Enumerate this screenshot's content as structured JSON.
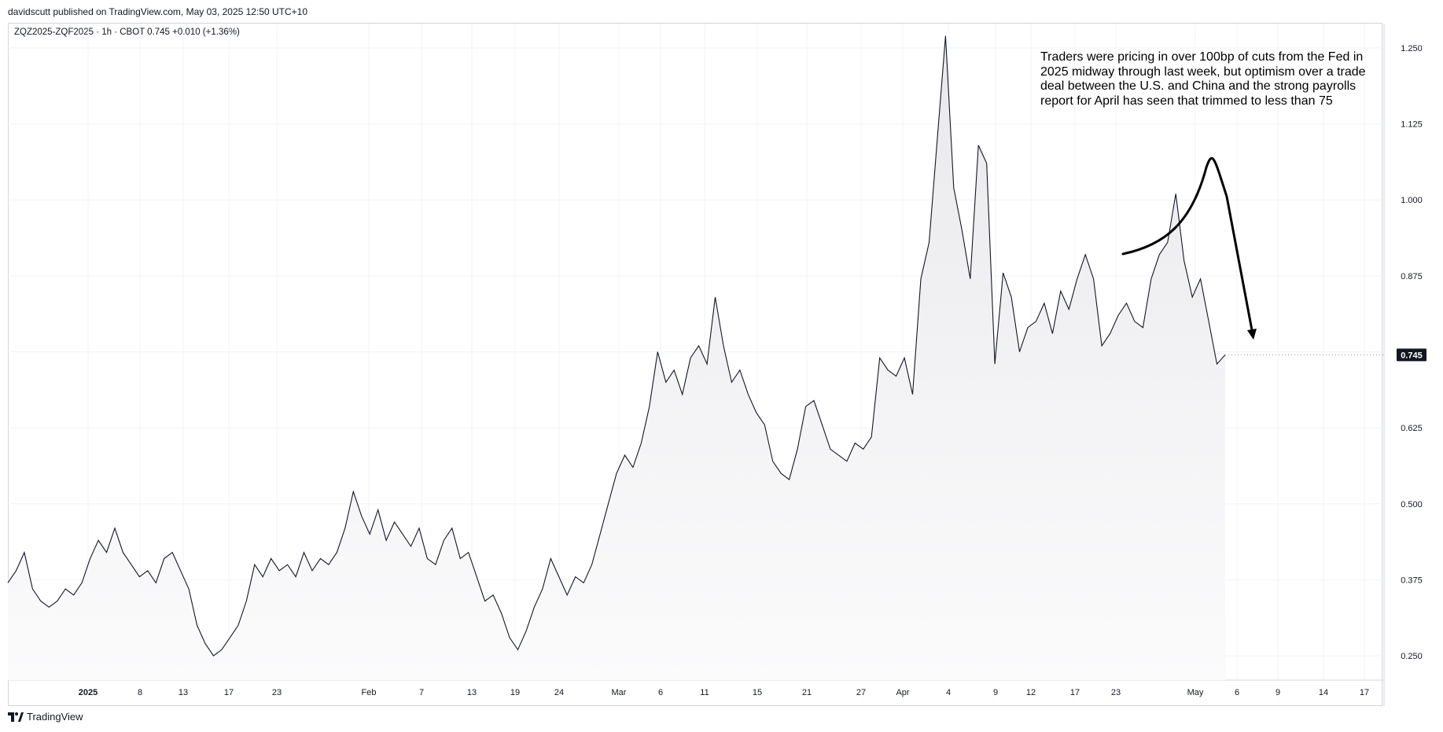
{
  "header": {
    "publisher_line": "davidscutt published on TradingView.com, May 03, 2025 12:50 UTC+10",
    "symbol_line": "ZQZ2025-ZQF2025 · 1h · CBOT  0.745  +0.010 (+1.36%)"
  },
  "annotation": {
    "text": "Traders were pricing in over 100bp of cuts from the Fed in 2025 midway through last week, but optimism over a trade deal between the U.S. and China and the strong payrolls report for April has seen that trimmed to less than 75"
  },
  "footer": {
    "brand": "TradingView"
  },
  "chart_data": {
    "type": "area",
    "series": [
      {
        "values": [
          0.37,
          0.39,
          0.42,
          0.36,
          0.34,
          0.33,
          0.34,
          0.36,
          0.35,
          0.37,
          0.41,
          0.44,
          0.42,
          0.46,
          0.42,
          0.4,
          0.38,
          0.39,
          0.37,
          0.41,
          0.42,
          0.39,
          0.36,
          0.3,
          0.27,
          0.25,
          0.26,
          0.28,
          0.3,
          0.34,
          0.4,
          0.38,
          0.41,
          0.39,
          0.4,
          0.38,
          0.42,
          0.39,
          0.41,
          0.4,
          0.42,
          0.46,
          0.52,
          0.48,
          0.45,
          0.49,
          0.44,
          0.47,
          0.45,
          0.43,
          0.46,
          0.41,
          0.4,
          0.44,
          0.46,
          0.41,
          0.42,
          0.38,
          0.34,
          0.35,
          0.32,
          0.28,
          0.26,
          0.29,
          0.33,
          0.36,
          0.41,
          0.38,
          0.35,
          0.38,
          0.37,
          0.4,
          0.45,
          0.5,
          0.55,
          0.58,
          0.56,
          0.6,
          0.66,
          0.75,
          0.7,
          0.72,
          0.68,
          0.74,
          0.76,
          0.73,
          0.84,
          0.76,
          0.7,
          0.72,
          0.68,
          0.65,
          0.63,
          0.57,
          0.55,
          0.54,
          0.59,
          0.66,
          0.67,
          0.63,
          0.59,
          0.58,
          0.57,
          0.6,
          0.59,
          0.61,
          0.74,
          0.72,
          0.71,
          0.74,
          0.68,
          0.87,
          0.93,
          1.1,
          1.27,
          1.02,
          0.95,
          0.87,
          1.09,
          1.06,
          0.73,
          0.88,
          0.84,
          0.75,
          0.79,
          0.8,
          0.83,
          0.78,
          0.85,
          0.82,
          0.87,
          0.91,
          0.87,
          0.76,
          0.78,
          0.81,
          0.83,
          0.8,
          0.79,
          0.87,
          0.91,
          0.93,
          1.01,
          0.9,
          0.84,
          0.87,
          0.8,
          0.73,
          0.745
        ],
        "last_value": 0.745,
        "line_color": "#131722"
      }
    ],
    "x_tick_labels": [
      "2025",
      "8",
      "13",
      "17",
      "23",
      "Feb",
      "7",
      "13",
      "19",
      "24",
      "Mar",
      "6",
      "11",
      "15",
      "21",
      "27",
      "Apr",
      "4",
      "9",
      "12",
      "17",
      "23",
      "May",
      "6",
      "9",
      "14",
      "17"
    ],
    "y_tick_labels": [
      "1.250",
      "1.125",
      "1.000",
      "0.875",
      "0.750",
      "0.625",
      "0.500",
      "0.375",
      "0.250"
    ],
    "ylim": [
      0.21,
      1.29
    ],
    "grid": true,
    "last_price_label": "0.745",
    "last_price_color": "#131722"
  }
}
